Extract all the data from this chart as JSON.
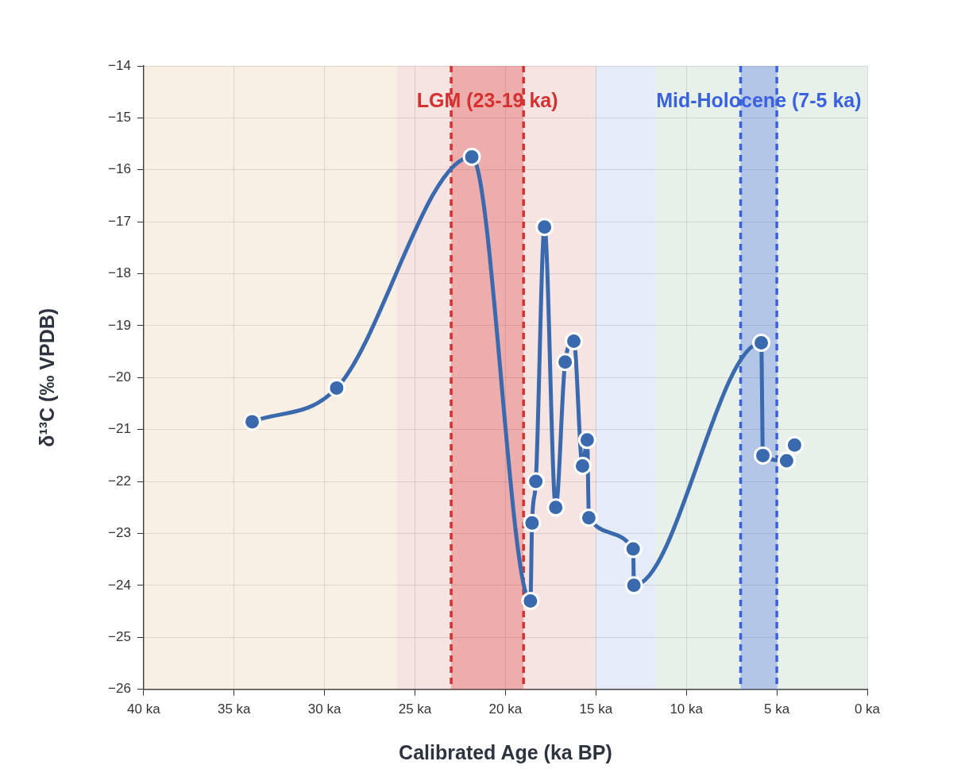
{
  "chart_data": {
    "type": "line",
    "xlabel": "Calibrated Age (ka BP)",
    "ylabel": "δ¹³C (‰ VPDB)",
    "x": [
      34,
      29.33,
      21.86,
      18.62,
      18.53,
      18.32,
      17.84,
      17.22,
      16.7,
      16.22,
      15.74,
      15.48,
      15.39,
      12.94,
      12.9,
      5.86,
      5.77,
      4.46,
      4.02
    ],
    "series": [
      {
        "color": "#3a6aad",
        "values": [
          -20.85,
          -20.2,
          -15.75,
          -24.3,
          -22.8,
          -22.0,
          -17.1,
          -22.5,
          -19.7,
          -19.3,
          -21.7,
          -21.2,
          -22.7,
          -23.3,
          -24.0,
          -19.33,
          -21.5,
          -21.6,
          -21.3
        ]
      }
    ],
    "xlim": [
      40,
      0
    ],
    "xticks": [
      {
        "value": 40,
        "label": "40 ka"
      },
      {
        "value": 35,
        "label": "35 ka"
      },
      {
        "value": 30,
        "label": "30 ka"
      },
      {
        "value": 25,
        "label": "25 ka"
      },
      {
        "value": 20,
        "label": "20 ka"
      },
      {
        "value": 15,
        "label": "15 ka"
      },
      {
        "value": 10,
        "label": "10 ka"
      },
      {
        "value": 5,
        "label": "5 ka"
      },
      {
        "value": 0,
        "label": "0 ka"
      }
    ],
    "ylim": [
      -26,
      -14
    ],
    "yticks": [
      {
        "value": -26,
        "label": "−26"
      },
      {
        "value": -25,
        "label": "−25"
      },
      {
        "value": -24,
        "label": "−24"
      },
      {
        "value": -23,
        "label": "−23"
      },
      {
        "value": -22,
        "label": "−22"
      },
      {
        "value": -21,
        "label": "−21"
      },
      {
        "value": -20,
        "label": "−20"
      },
      {
        "value": -19,
        "label": "−19"
      },
      {
        "value": -18,
        "label": "−18"
      },
      {
        "value": -17,
        "label": "−17"
      },
      {
        "value": -16,
        "label": "−16"
      },
      {
        "value": -15,
        "label": "−15"
      },
      {
        "value": -14,
        "label": "−14"
      }
    ],
    "bands": [
      {
        "axis": "x",
        "from": 40,
        "to": 26,
        "color": "#e8caa8"
      },
      {
        "axis": "x",
        "from": 26,
        "to": 15,
        "color": "#e0a5a2"
      },
      {
        "axis": "x",
        "from": 15,
        "to": 11.7,
        "color": "#acc0e4"
      },
      {
        "axis": "x",
        "from": 11.7,
        "to": 0,
        "color": "#afd1b9"
      },
      {
        "axis": "x",
        "from": 23,
        "to": 19,
        "label": "LGM (23-19 ka)",
        "color": "#d63030"
      },
      {
        "axis": "x",
        "from": 7,
        "to": 5,
        "label": "Mid-Holocene (7-5 ka)",
        "color": "#3a62e0"
      }
    ],
    "ref_lines": [
      {
        "axis": "x",
        "value": 23,
        "color": "#d63030",
        "line_style": "dashed"
      },
      {
        "axis": "x",
        "value": 19,
        "color": "#d63030",
        "line_style": "dashed"
      },
      {
        "axis": "x",
        "value": 7,
        "color": "#3a62e0",
        "line_style": "dashed"
      },
      {
        "axis": "x",
        "value": 5,
        "color": "#3a62e0",
        "line_style": "dashed"
      }
    ],
    "grid": true,
    "legend": false,
    "marker": "circle",
    "line_style": "solid"
  }
}
